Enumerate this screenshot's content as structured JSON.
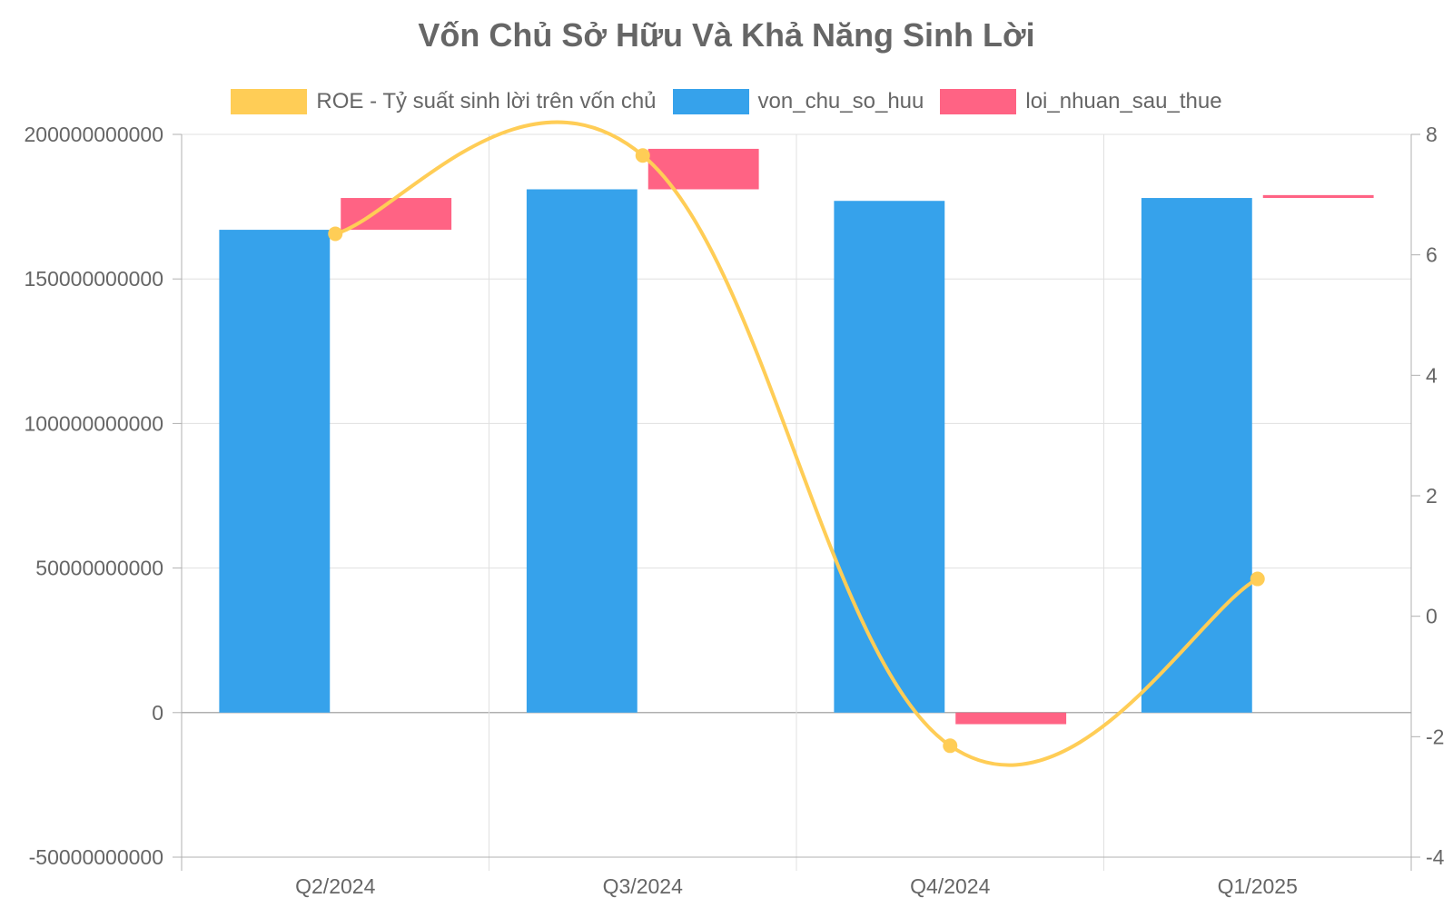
{
  "title": "Vốn Chủ Sở Hữu Và Khả Năng Sinh Lời",
  "colors": {
    "roe": "#ffcd56",
    "von_chu_so_huu": "#36a2eb",
    "loi_nhuan_sau_thue": "#ff6384",
    "grid": "#e0e0e0",
    "axis": "#b0b0b0",
    "text": "#666666"
  },
  "legend": [
    {
      "key": "roe",
      "label": "ROE - Tỷ suất sinh lời trên vốn chủ"
    },
    {
      "key": "von_chu_so_huu",
      "label": "von_chu_so_huu"
    },
    {
      "key": "loi_nhuan_sau_thue",
      "label": "loi_nhuan_sau_thue"
    }
  ],
  "chart_data": {
    "type": "bar",
    "title": "Vốn Chủ Sở Hữu Và Khả Năng Sinh Lời",
    "categories": [
      "Q2/2024",
      "Q3/2024",
      "Q4/2024",
      "Q1/2025"
    ],
    "series": [
      {
        "name": "von_chu_so_huu",
        "type": "bar",
        "axis": "left",
        "values": [
          167000000000,
          181000000000,
          177000000000,
          178000000000
        ]
      },
      {
        "name": "loi_nhuan_sau_thue",
        "type": "floating-bar",
        "axis": "left",
        "note_ranges": "each bar spans from previous equity level to new level",
        "ranges": [
          [
            167000000000,
            178000000000
          ],
          [
            181000000000,
            195000000000
          ],
          [
            -4000000000,
            0
          ],
          [
            178000000000,
            179000000000
          ]
        ]
      },
      {
        "name": "ROE - Tỷ suất sinh lời trên vốn chủ",
        "type": "line",
        "axis": "right",
        "values": [
          6.35,
          7.65,
          -2.15,
          0.62
        ]
      }
    ],
    "y_left": {
      "ylim": [
        -50000000000,
        200000000000
      ],
      "ticks": [
        "200000000000",
        "150000000000",
        "100000000000",
        "50000000000",
        "0",
        "-50000000000"
      ],
      "tick_values": [
        200000000000,
        150000000000,
        100000000000,
        50000000000,
        0,
        -50000000000
      ]
    },
    "y_right": {
      "ylim": [
        -4,
        8
      ],
      "ticks": [
        "8",
        "6",
        "4",
        "2",
        "0",
        "-2",
        "-4"
      ],
      "tick_values": [
        8,
        6,
        4,
        2,
        0,
        -2,
        -4
      ]
    },
    "grid": true,
    "legend_position": "top"
  }
}
